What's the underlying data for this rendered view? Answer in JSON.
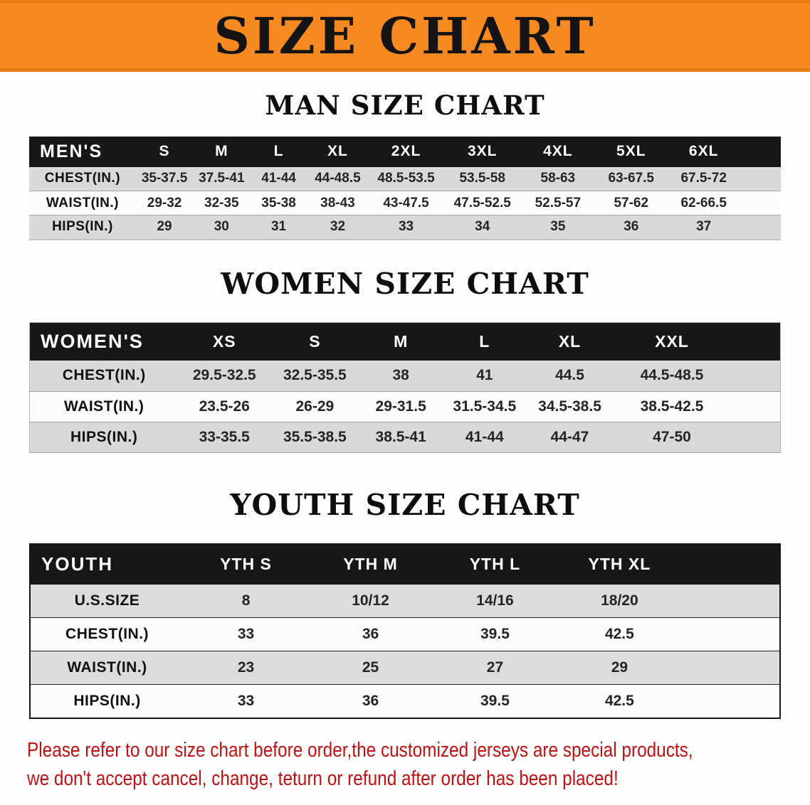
{
  "banner": {
    "title": "SIZE CHART"
  },
  "headings": {
    "men": "MAN SIZE CHART",
    "women": "WOMEN SIZE CHART",
    "youth": "YOUTH SIZE CHART"
  },
  "tables": {
    "men": {
      "corner": "MEN'S",
      "columns": [
        "S",
        "M",
        "L",
        "XL",
        "2XL",
        "3XL",
        "4XL",
        "5XL",
        "6XL"
      ],
      "rows": [
        {
          "label": "CHEST(IN.)",
          "values": [
            "35-37.5",
            "37.5-41",
            "41-44",
            "44-48.5",
            "48.5-53.5",
            "53.5-58",
            "58-63",
            "63-67.5",
            "67.5-72"
          ]
        },
        {
          "label": "WAIST(IN.)",
          "values": [
            "29-32",
            "32-35",
            "35-38",
            "38-43",
            "43-47.5",
            "47.5-52.5",
            "52.5-57",
            "57-62",
            "62-66.5"
          ]
        },
        {
          "label": "HIPS(IN.)",
          "values": [
            "29",
            "30",
            "31",
            "32",
            "33",
            "34",
            "35",
            "36",
            "37"
          ]
        }
      ]
    },
    "women": {
      "corner": "WOMEN'S",
      "columns": [
        "XS",
        "S",
        "M",
        "L",
        "XL",
        "XXL"
      ],
      "rows": [
        {
          "label": "CHEST(IN.)",
          "values": [
            "29.5-32.5",
            "32.5-35.5",
            "38",
            "41",
            "44.5",
            "44.5-48.5"
          ]
        },
        {
          "label": "WAIST(IN.)",
          "values": [
            "23.5-26",
            "26-29",
            "29-31.5",
            "31.5-34.5",
            "34.5-38.5",
            "38.5-42.5"
          ]
        },
        {
          "label": "HIPS(IN.)",
          "values": [
            "33-35.5",
            "35.5-38.5",
            "38.5-41",
            "41-44",
            "44-47",
            "47-50"
          ]
        }
      ]
    },
    "youth": {
      "corner": "YOUTH",
      "columns": [
        "YTH S",
        "YTH M",
        "YTH L",
        "YTH XL"
      ],
      "rows": [
        {
          "label": "U.S.SIZE",
          "values": [
            "8",
            "10/12",
            "14/16",
            "18/20"
          ]
        },
        {
          "label": "CHEST(IN.)",
          "values": [
            "33",
            "36",
            "39.5",
            "42.5"
          ]
        },
        {
          "label": "WAIST(IN.)",
          "values": [
            "23",
            "25",
            "27",
            "29"
          ]
        },
        {
          "label": "HIPS(IN.)",
          "values": [
            "33",
            "36",
            "39.5",
            "42.5"
          ]
        }
      ]
    }
  },
  "footer": {
    "line1": "Please refer to our size chart before order,the customized jerseys are special products,",
    "line2": "we don't accept cancel, change, teturn or refund after order has been placed!"
  },
  "colors": {
    "banner_orange": "#f6891f",
    "banner_border_orange": "#e87c10",
    "table_header_black": "#171717",
    "row_gray": "#d9d9d9",
    "disclaimer_red": "#c01212"
  }
}
